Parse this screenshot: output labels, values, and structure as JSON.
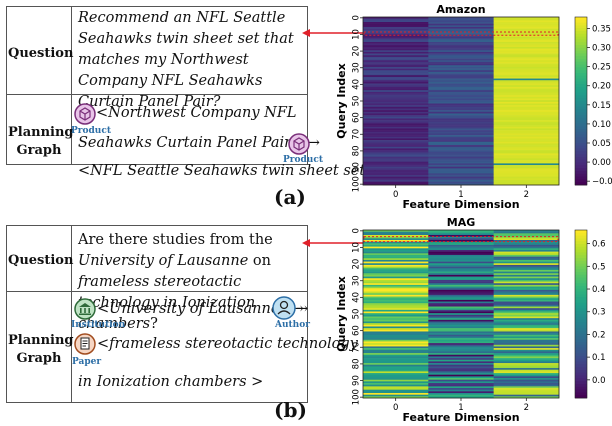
{
  "panels": [
    {
      "letter": "(a)",
      "question_label": "Question",
      "planning_label": "Planning\nGraph",
      "question_parts": [
        {
          "t": "Recommend an NFL Seattle Seahawks twin sheet set that matches my Northwest Company NFL Seahawks Curtain Panel Pair?",
          "i": true
        }
      ],
      "plan_lines": [
        "<Northwest Company NFL",
        "Seahawks Curtain Panel Pair> →",
        "<NFL Seattle Seahawks twin sheet set>"
      ],
      "tags": [
        "Product",
        "Product"
      ],
      "icons": [
        "product-icon",
        "product-icon"
      ]
    },
    {
      "letter": "(b)",
      "question_label": "Question",
      "planning_label": "Planning\nGraph",
      "question_parts": [
        {
          "t": "Are there studies from the ",
          "i": false
        },
        {
          "t": "University of Lausanne",
          "i": true
        },
        {
          "t": " on ",
          "i": false
        },
        {
          "t": "frameless stereotactic technology in Ionization chambers",
          "i": true
        },
        {
          "t": "?",
          "i": false
        }
      ],
      "plan_lines": [
        "<University of Lausanne>→",
        "→",
        "<frameless stereotactic technology",
        "in Ionization chambers >"
      ],
      "tags": [
        "Institution",
        "Author",
        "Paper"
      ],
      "icons": [
        "institution-icon",
        "author-icon",
        "paper-icon"
      ]
    }
  ],
  "chart_data": [
    {
      "type": "heatmap",
      "title": "Amazon",
      "xlabel": "Feature Dimension",
      "ylabel": "Query Index",
      "x_ticks": [
        "0",
        "1",
        "2"
      ],
      "y_ticks": [
        "0",
        "10",
        "20",
        "30",
        "40",
        "50",
        "60",
        "70",
        "80",
        "90",
        "100"
      ],
      "colorbar_ticks": [
        "0.35",
        "0.30",
        "0.25",
        "0.20",
        "0.15",
        "0.10",
        "0.05",
        "0.00",
        "−0.05"
      ],
      "vmin": -0.06,
      "vmax": 0.38,
      "rows": 101,
      "column_base": [
        0.0,
        0.04,
        0.36
      ],
      "highlight_rows": [
        9,
        11
      ],
      "colormap": "viridis"
    },
    {
      "type": "heatmap",
      "title": "MAG",
      "xlabel": "Feature Dimension",
      "ylabel": "Query Index",
      "x_ticks": [
        "0",
        "1",
        "2"
      ],
      "y_ticks": [
        "0",
        "10",
        "20",
        "30",
        "40",
        "50",
        "60",
        "70",
        "80",
        "90",
        "100"
      ],
      "colorbar_ticks": [
        "0.6",
        "0.5",
        "0.4",
        "0.3",
        "0.2",
        "0.1",
        "0.0"
      ],
      "vmin": -0.08,
      "vmax": 0.66,
      "rows": 101,
      "column_base": [
        0.48,
        0.18,
        0.36
      ],
      "highlight_rows": [
        4,
        7
      ],
      "colormap": "viridis"
    }
  ]
}
